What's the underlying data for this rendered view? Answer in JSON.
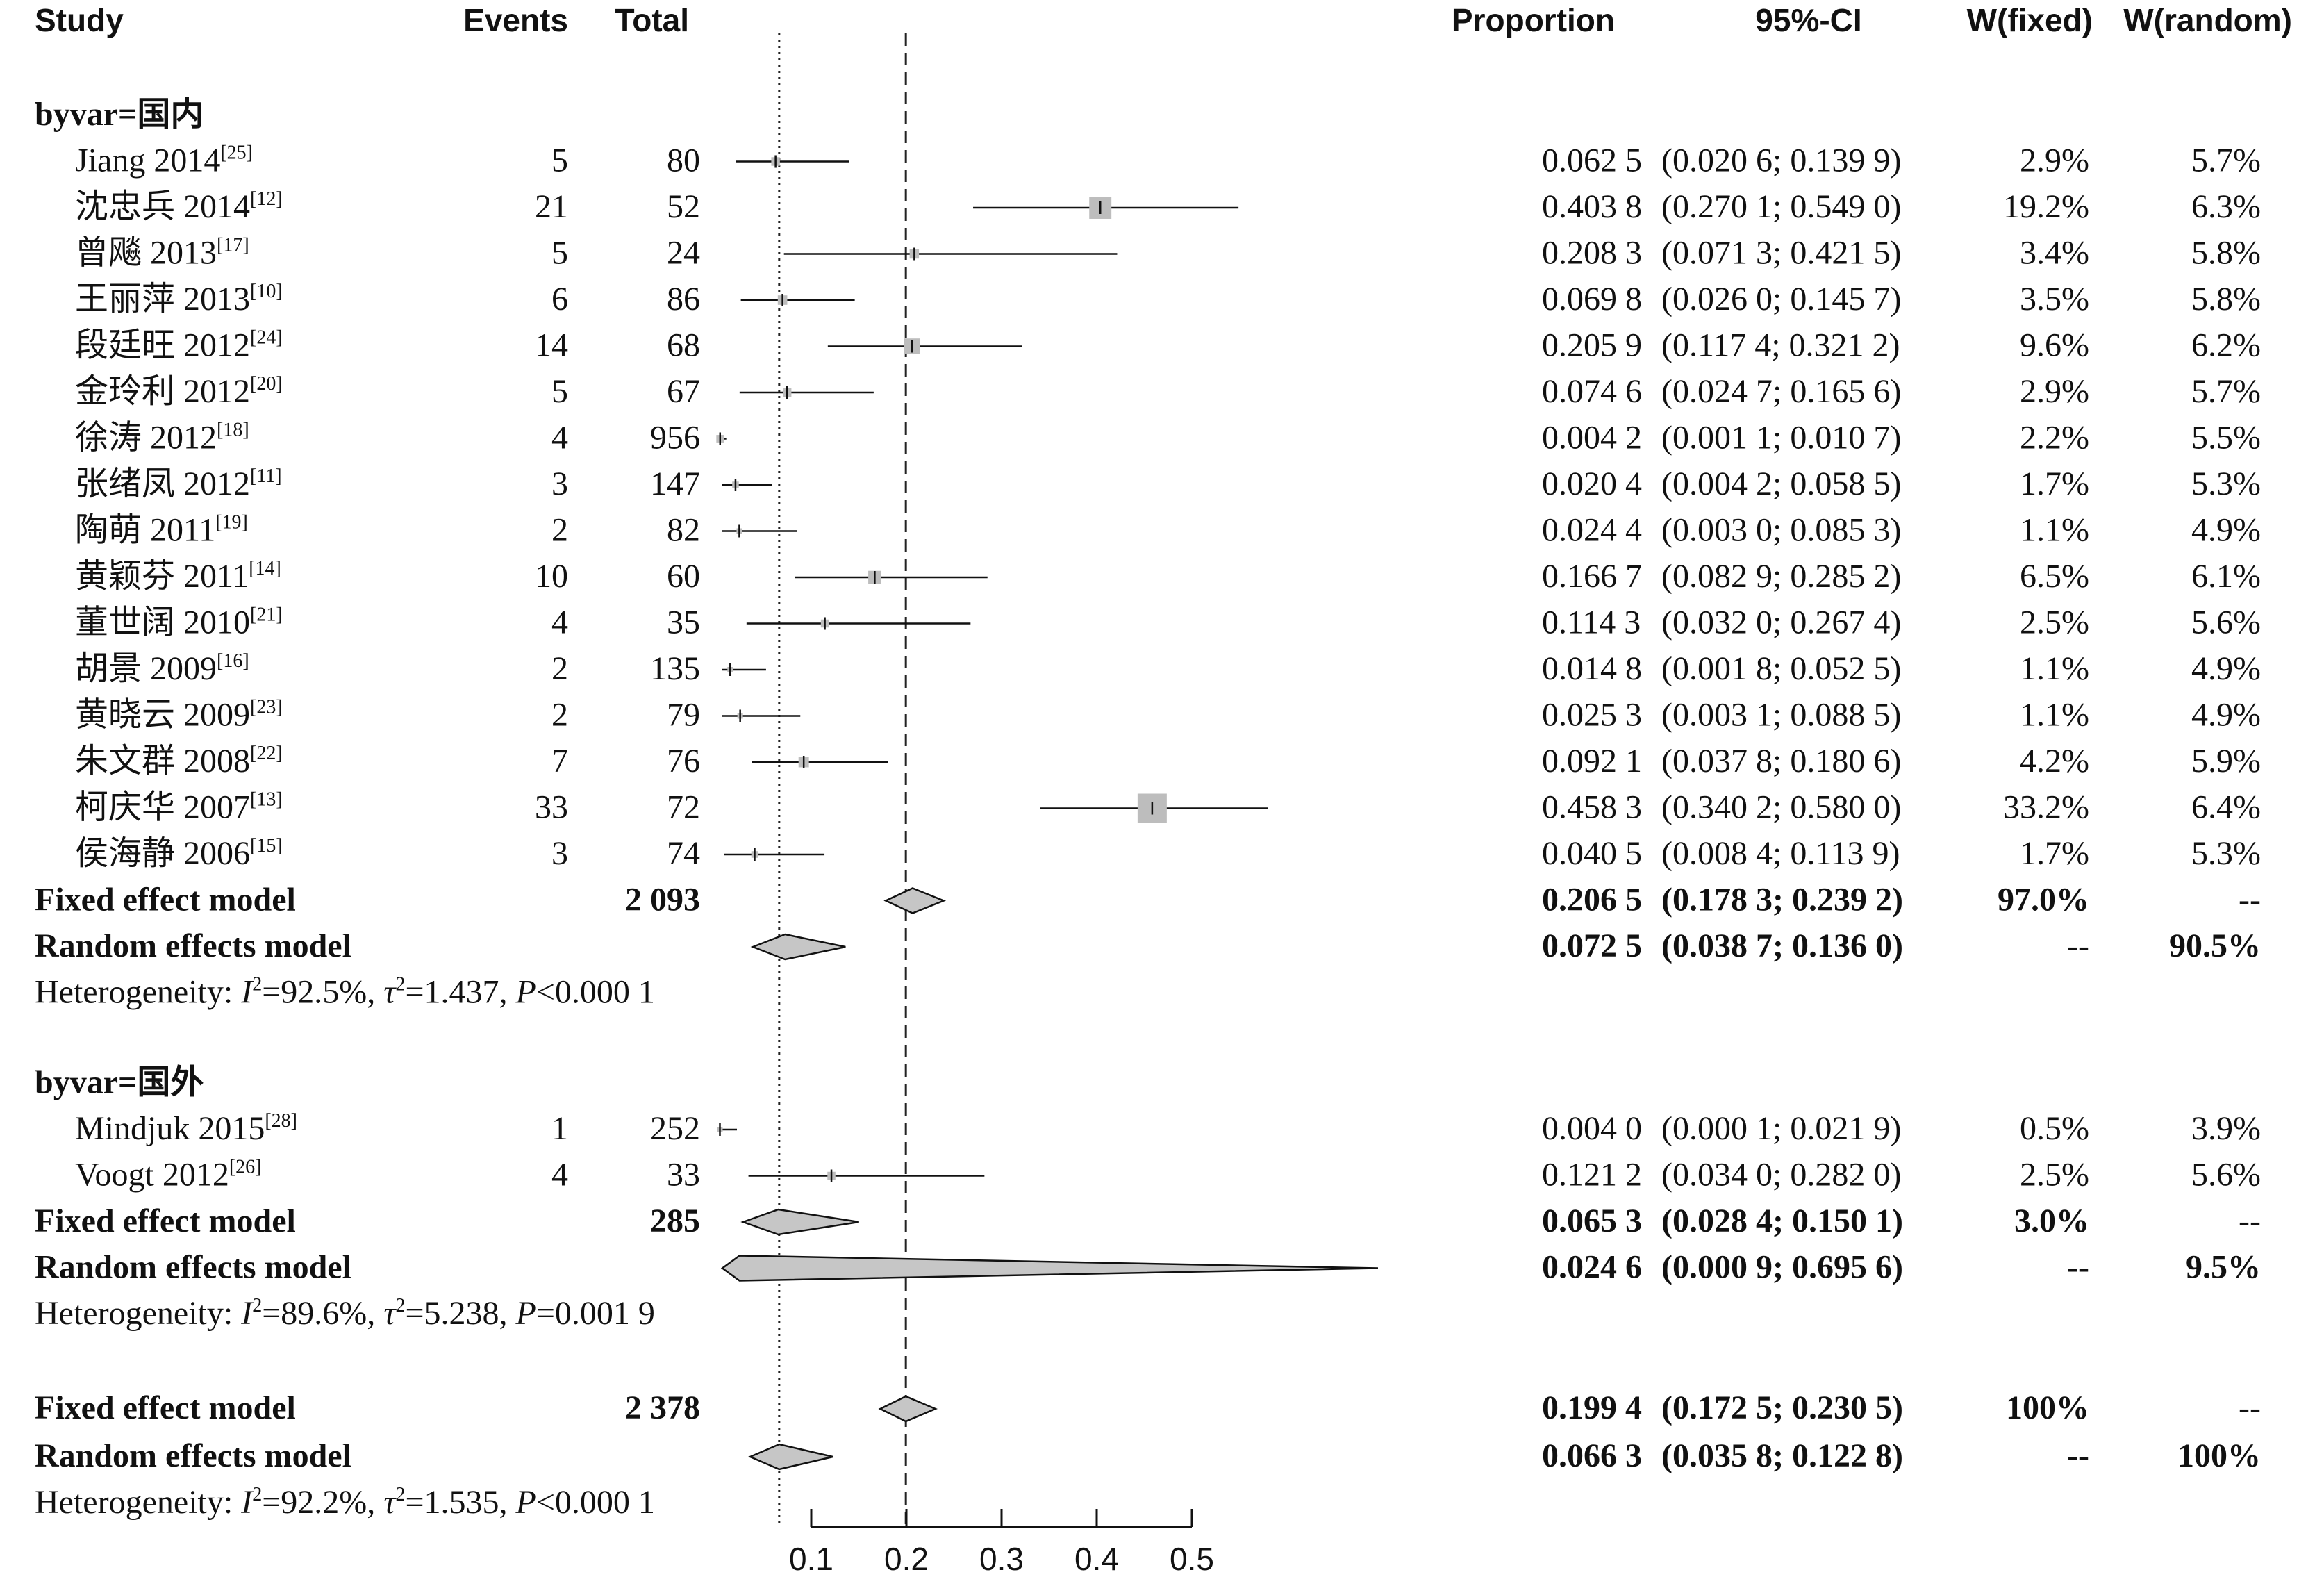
{
  "headers": {
    "study": "Study",
    "events": "Events",
    "total": "Total",
    "proportion": "Proportion",
    "ci": "95%-CI",
    "w_fixed": "W(fixed)",
    "w_random": "W(random)"
  },
  "chart_data": {
    "type": "forest",
    "xlim": [
      0.1,
      0.5
    ],
    "x_ticks": [
      "0.1",
      "0.2",
      "0.3",
      "0.4",
      "0.5"
    ],
    "reference_lines": {
      "random_overall": 0.0663,
      "fixed_overall": 0.1994
    },
    "groups": [
      {
        "label": "byvar=国内",
        "studies": [
          {
            "name": "Jiang 2014",
            "ref": "[25]",
            "events": "5",
            "total": "80",
            "proportion": "0.062 5",
            "ci": "(0.020 6; 0.139 9)",
            "w_fixed": "2.9%",
            "w_random": "5.7%",
            "est": 0.0625,
            "lo": 0.0206,
            "hi": 0.1399,
            "wf": 2.9
          },
          {
            "name": "沈忠兵 2014",
            "ref": "[12]",
            "events": "21",
            "total": "52",
            "proportion": "0.403 8",
            "ci": "(0.270 1; 0.549 0)",
            "w_fixed": "19.2%",
            "w_random": "6.3%",
            "est": 0.4038,
            "lo": 0.2701,
            "hi": 0.549,
            "wf": 19.2
          },
          {
            "name": "曾飚 2013",
            "ref": "[17]",
            "events": "5",
            "total": "24",
            "proportion": "0.208 3",
            "ci": "(0.071 3; 0.421 5)",
            "w_fixed": "3.4%",
            "w_random": "5.8%",
            "est": 0.2083,
            "lo": 0.0713,
            "hi": 0.4215,
            "wf": 3.4
          },
          {
            "name": "王丽萍 2013",
            "ref": "[10]",
            "events": "6",
            "total": "86",
            "proportion": "0.069 8",
            "ci": "(0.026 0; 0.145 7)",
            "w_fixed": "3.5%",
            "w_random": "5.8%",
            "est": 0.0698,
            "lo": 0.026,
            "hi": 0.1457,
            "wf": 3.5
          },
          {
            "name": "段廷旺 2012",
            "ref": "[24]",
            "events": "14",
            "total": "68",
            "proportion": "0.205 9",
            "ci": "(0.117 4; 0.321 2)",
            "w_fixed": "9.6%",
            "w_random": "6.2%",
            "est": 0.2059,
            "lo": 0.1174,
            "hi": 0.3212,
            "wf": 9.6
          },
          {
            "name": "金玲利 2012",
            "ref": "[20]",
            "events": "5",
            "total": "67",
            "proportion": "0.074 6",
            "ci": "(0.024 7; 0.165 6)",
            "w_fixed": "2.9%",
            "w_random": "5.7%",
            "est": 0.0746,
            "lo": 0.0247,
            "hi": 0.1656,
            "wf": 2.9
          },
          {
            "name": "徐涛 2012",
            "ref": "[18]",
            "events": "4",
            "total": "956",
            "proportion": "0.004 2",
            "ci": "(0.001 1; 0.010 7)",
            "w_fixed": "2.2%",
            "w_random": "5.5%",
            "est": 0.0042,
            "lo": 0.0011,
            "hi": 0.0107,
            "wf": 2.2
          },
          {
            "name": "张绪凤 2012",
            "ref": "[11]",
            "events": "3",
            "total": "147",
            "proportion": "0.020 4",
            "ci": "(0.004 2; 0.058 5)",
            "w_fixed": "1.7%",
            "w_random": "5.3%",
            "est": 0.0204,
            "lo": 0.0042,
            "hi": 0.0585,
            "wf": 1.7
          },
          {
            "name": "陶萌 2011",
            "ref": "[19]",
            "events": "2",
            "total": "82",
            "proportion": "0.024 4",
            "ci": "(0.003 0; 0.085 3)",
            "w_fixed": "1.1%",
            "w_random": "4.9%",
            "est": 0.0244,
            "lo": 0.003,
            "hi": 0.0853,
            "wf": 1.1
          },
          {
            "name": "黄颖芬 2011",
            "ref": "[14]",
            "events": "10",
            "total": "60",
            "proportion": "0.166 7",
            "ci": "(0.082 9; 0.285 2)",
            "w_fixed": "6.5%",
            "w_random": "6.1%",
            "est": 0.1667,
            "lo": 0.0829,
            "hi": 0.2852,
            "wf": 6.5
          },
          {
            "name": "董世阔 2010",
            "ref": "[21]",
            "events": "4",
            "total": "35",
            "proportion": "0.114 3",
            "ci": "(0.032 0; 0.267 4)",
            "w_fixed": "2.5%",
            "w_random": "5.6%",
            "est": 0.1143,
            "lo": 0.032,
            "hi": 0.2674,
            "wf": 2.5
          },
          {
            "name": "胡景 2009",
            "ref": "[16]",
            "events": "2",
            "total": "135",
            "proportion": "0.014 8",
            "ci": "(0.001 8; 0.052 5)",
            "w_fixed": "1.1%",
            "w_random": "4.9%",
            "est": 0.0148,
            "lo": 0.0018,
            "hi": 0.0525,
            "wf": 1.1
          },
          {
            "name": "黄晓云 2009",
            "ref": "[23]",
            "events": "2",
            "total": "79",
            "proportion": "0.025 3",
            "ci": "(0.003 1; 0.088 5)",
            "w_fixed": "1.1%",
            "w_random": "4.9%",
            "est": 0.0253,
            "lo": 0.0031,
            "hi": 0.0885,
            "wf": 1.1
          },
          {
            "name": "朱文群 2008",
            "ref": "[22]",
            "events": "7",
            "total": "76",
            "proportion": "0.092 1",
            "ci": "(0.037 8; 0.180 6)",
            "w_fixed": "4.2%",
            "w_random": "5.9%",
            "est": 0.0921,
            "lo": 0.0378,
            "hi": 0.1806,
            "wf": 4.2
          },
          {
            "name": "柯庆华 2007",
            "ref": "[13]",
            "events": "33",
            "total": "72",
            "proportion": "0.458 3",
            "ci": "(0.340 2; 0.580 0)",
            "w_fixed": "33.2%",
            "w_random": "6.4%",
            "est": 0.4583,
            "lo": 0.3402,
            "hi": 0.58,
            "wf": 33.2
          },
          {
            "name": "侯海静 2006",
            "ref": "[15]",
            "events": "3",
            "total": "74",
            "proportion": "0.040 5",
            "ci": "(0.008 4; 0.113 9)",
            "w_fixed": "1.7%",
            "w_random": "5.3%",
            "est": 0.0405,
            "lo": 0.0084,
            "hi": 0.1139,
            "wf": 1.7
          }
        ],
        "fixed": {
          "label": "Fixed effect model",
          "total": "2 093",
          "proportion": "0.206 5",
          "ci": "(0.178 3; 0.239 2)",
          "w_fixed": "97.0%",
          "w_random": "--",
          "est": 0.2065,
          "lo": 0.1783,
          "hi": 0.2392
        },
        "random": {
          "label": "Random effects model",
          "total": "",
          "proportion": "0.072 5",
          "ci": "(0.038 7; 0.136 0)",
          "w_fixed": "--",
          "w_random": "90.5%",
          "est": 0.0725,
          "lo": 0.0387,
          "hi": 0.136
        },
        "heterogeneity": {
          "i2": "92.5%",
          "tau2": "1.437",
          "p": "<0.000 1"
        }
      },
      {
        "label": "byvar=国外",
        "studies": [
          {
            "name": "Mindjuk 2015",
            "ref": "[28]",
            "events": "1",
            "total": "252",
            "proportion": "0.004 0",
            "ci": "(0.000 1; 0.021 9)",
            "w_fixed": "0.5%",
            "w_random": "3.9%",
            "est": 0.004,
            "lo": 0.0001,
            "hi": 0.0219,
            "wf": 0.5
          },
          {
            "name": "Voogt 2012",
            "ref": "[26]",
            "events": "4",
            "total": "33",
            "proportion": "0.121 2",
            "ci": "(0.034 0; 0.282 0)",
            "w_fixed": "2.5%",
            "w_random": "5.6%",
            "est": 0.1212,
            "lo": 0.034,
            "hi": 0.282,
            "wf": 2.5
          }
        ],
        "fixed": {
          "label": "Fixed effect model",
          "total": "285",
          "proportion": "0.065 3",
          "ci": "(0.028 4; 0.150 1)",
          "w_fixed": "3.0%",
          "w_random": "--",
          "est": 0.0653,
          "lo": 0.0284,
          "hi": 0.1501
        },
        "random": {
          "label": "Random effects model",
          "total": "",
          "proportion": "0.024 6",
          "ci": "(0.000 9; 0.695 6)",
          "w_fixed": "--",
          "w_random": "9.5%",
          "est": 0.0246,
          "lo": 0.0009,
          "hi": 0.6956
        },
        "heterogeneity": {
          "i2": "89.6%",
          "tau2": "5.238",
          "p": "=0.001 9"
        }
      }
    ],
    "overall": {
      "fixed": {
        "label": "Fixed effect model",
        "total": "2 378",
        "proportion": "0.199 4",
        "ci": "(0.172 5; 0.230 5)",
        "w_fixed": "100%",
        "w_random": "--",
        "est": 0.1994,
        "lo": 0.1725,
        "hi": 0.2305
      },
      "random": {
        "label": "Random effects model",
        "total": "",
        "proportion": "0.066 3",
        "ci": "(0.035 8; 0.122 8)",
        "w_fixed": "--",
        "w_random": "100%",
        "est": 0.0663,
        "lo": 0.0358,
        "hi": 0.1228
      },
      "heterogeneity": {
        "i2": "92.2%",
        "tau2": "1.535",
        "p": "<0.000 1"
      }
    }
  }
}
